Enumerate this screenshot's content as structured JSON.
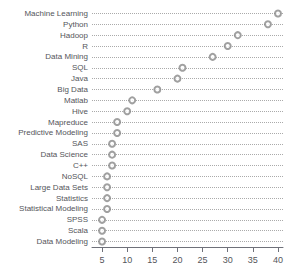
{
  "chart_data": {
    "type": "dot",
    "orientation": "horizontal",
    "categories": [
      "Machine Learning",
      "Python",
      "Hadoop",
      "R",
      "Data Mining",
      "SQL",
      "Java",
      "Big Data",
      "Matlab",
      "Hive",
      "Mapreduce",
      "Predictive Modeling",
      "SAS",
      "Data Science",
      "C++",
      "NoSQL",
      "Large Data Sets",
      "Statistics",
      "Statistical Modeling",
      "SPSS",
      "Scala",
      "Data Modeling"
    ],
    "values": [
      40,
      38,
      32,
      30,
      27,
      21,
      20,
      16,
      11,
      10,
      8,
      8,
      7,
      7,
      7,
      6,
      6,
      6,
      6,
      5,
      5,
      5
    ],
    "xlim": [
      3,
      41
    ],
    "xticks": [
      5,
      10,
      15,
      20,
      25,
      30,
      35,
      40
    ],
    "color": "#888888",
    "marker": "circle",
    "grid": true
  }
}
